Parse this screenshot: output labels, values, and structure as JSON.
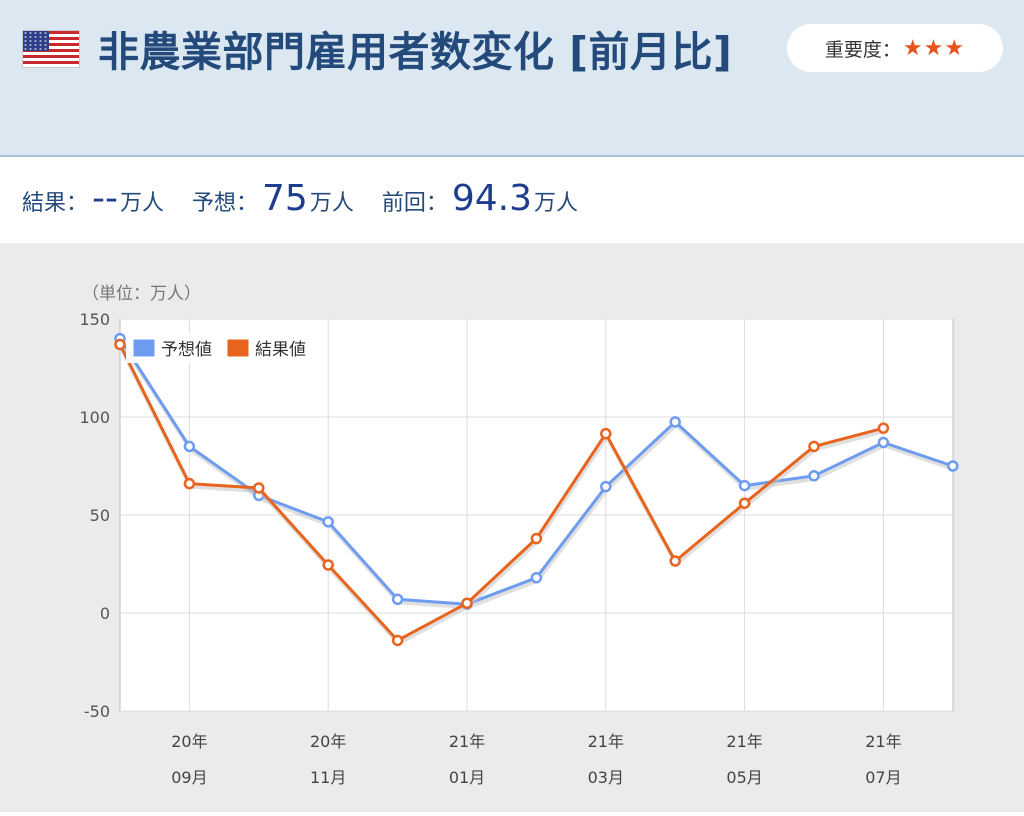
{
  "header": {
    "title": "非農業部門雇用者数変化 [前月比]",
    "importance_label": "重要度：",
    "importance_stars": "★★★"
  },
  "stats": {
    "result_label": "結果：",
    "result_value": "--",
    "result_unit": "万人",
    "forecast_label": "予想：",
    "forecast_value": "75",
    "forecast_unit": "万人",
    "previous_label": "前回：",
    "previous_value": "94.3",
    "previous_unit": "万人"
  },
  "chart_data": {
    "type": "line",
    "unit_label": "（単位：万人）",
    "ylim": [
      -50,
      150
    ],
    "yticks": [
      150,
      100,
      50,
      0,
      -50
    ],
    "grid": true,
    "legend_position": "top-left",
    "x_labels": [
      {
        "year": "20年",
        "month": "09月",
        "index": 1
      },
      {
        "year": "20年",
        "month": "11月",
        "index": 3
      },
      {
        "year": "21年",
        "month": "01月",
        "index": 5
      },
      {
        "year": "21年",
        "month": "03月",
        "index": 7
      },
      {
        "year": "21年",
        "month": "05月",
        "index": 9
      },
      {
        "year": "21年",
        "month": "07月",
        "index": 11
      }
    ],
    "series": [
      {
        "name": "予想値",
        "color": "#6e9cf0",
        "values": [
          140,
          85,
          60,
          46.5,
          7,
          4.5,
          18,
          64.5,
          97.5,
          65,
          70,
          87,
          75
        ]
      },
      {
        "name": "結果値",
        "color": "#e8641c",
        "values": [
          137,
          66,
          63.8,
          24.5,
          -14,
          5,
          38,
          91.5,
          26.5,
          56,
          85,
          94.3,
          null
        ]
      }
    ]
  }
}
